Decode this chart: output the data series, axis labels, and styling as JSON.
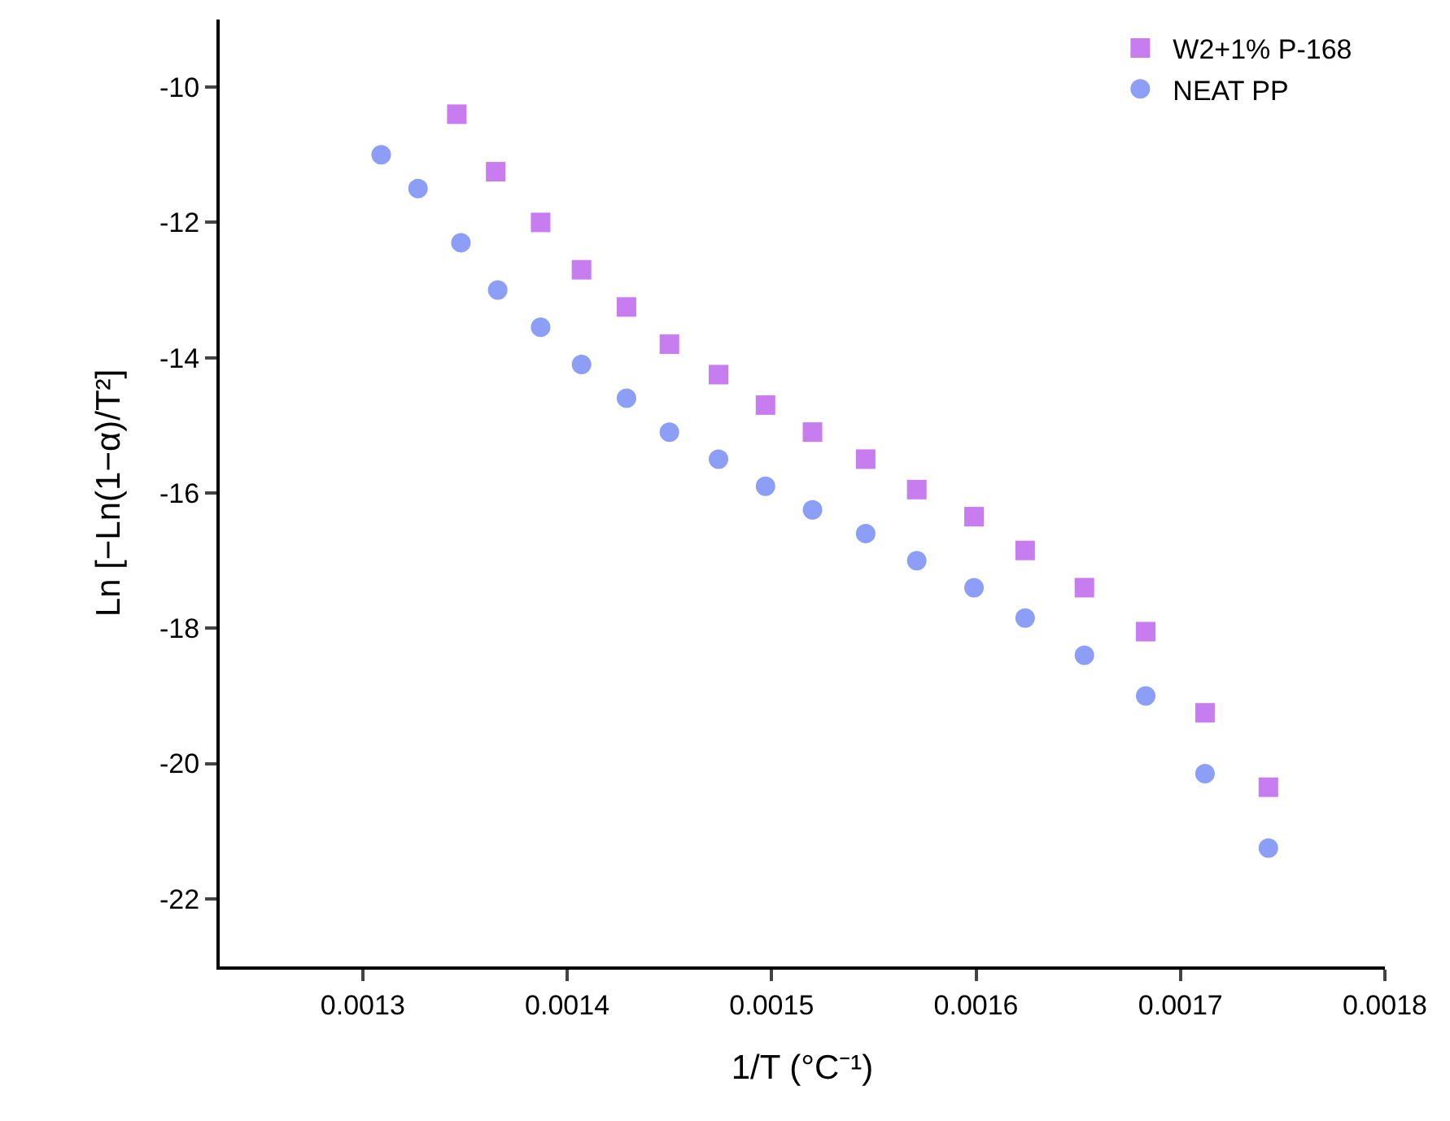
{
  "chart_data": {
    "type": "scatter",
    "xlabel": "1/T (°C⁻¹)",
    "ylabel": "Ln [−Ln(1−α)/T²]",
    "series": [
      {
        "name": "W2+1% P-168",
        "color": "#c77cf0",
        "marker": "square",
        "x": [
          0.001346,
          0.001365,
          0.001387,
          0.001407,
          0.001429,
          0.00145,
          0.001474,
          0.001497,
          0.00152,
          0.001546,
          0.001571,
          0.001599,
          0.001624,
          0.001653,
          0.001683,
          0.001712,
          0.001743
        ],
        "values": [
          -10.4,
          -11.25,
          -12,
          -12.7,
          -13.25,
          -13.8,
          -14.25,
          -14.7,
          -15.1,
          -15.5,
          -15.95,
          -16.35,
          -16.85,
          -17.4,
          -18.05,
          -19.25,
          -20.35
        ]
      },
      {
        "name": "NEAT PP",
        "color": "#8c9ef5",
        "marker": "circle",
        "x": [
          0.001309,
          0.001327,
          0.001348,
          0.001366,
          0.001387,
          0.001407,
          0.001429,
          0.00145,
          0.001474,
          0.001497,
          0.00152,
          0.001546,
          0.001571,
          0.001599,
          0.001624,
          0.001653,
          0.001683,
          0.001712,
          0.001743
        ],
        "values": [
          -11.0,
          -11.5,
          -12.3,
          -13.0,
          -13.55,
          -14.1,
          -14.6,
          -15.1,
          -15.5,
          -15.9,
          -16.25,
          -16.6,
          -17.0,
          -17.4,
          -17.85,
          -18.4,
          -19.0,
          -20.15,
          -21.25
        ]
      }
    ],
    "xlim": [
      0.00123,
      0.0018
    ],
    "xticks": [
      0.0013,
      0.0014,
      0.0015,
      0.0016,
      0.0017,
      0.0018
    ],
    "ylim": [
      -23,
      -9
    ],
    "yticks": [
      -22,
      -20,
      -18,
      -16,
      -14,
      -12,
      -10
    ],
    "grid": false,
    "legend": "top right"
  }
}
